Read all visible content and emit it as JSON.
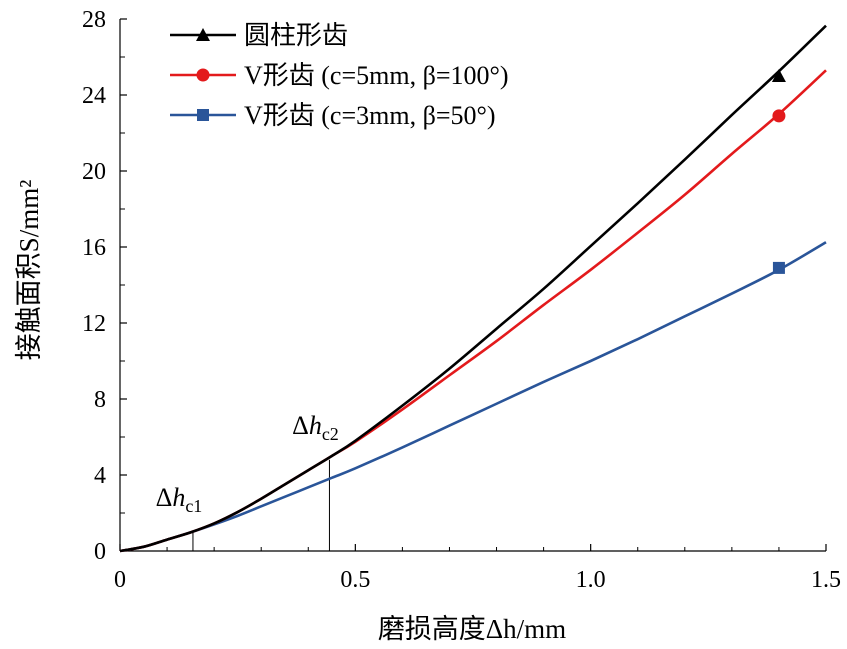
{
  "chart_data": {
    "type": "line",
    "xlabel": "磨损高度Δh/mm",
    "ylabel": "接触面积S/mm²",
    "xlim": [
      0,
      1.5
    ],
    "ylim": [
      0,
      28
    ],
    "x_ticks": [
      "0",
      "0.5",
      "1.0",
      "1.5"
    ],
    "x_tick_values": [
      0,
      0.5,
      1.0,
      1.5
    ],
    "y_ticks": [
      "0",
      "4",
      "8",
      "12",
      "16",
      "20",
      "24",
      "28"
    ],
    "y_tick_values": [
      0,
      4,
      8,
      12,
      16,
      20,
      24,
      28
    ],
    "grid": false,
    "legend_position": "top-left",
    "series": [
      {
        "name": "圆柱形齿",
        "color": "#000000",
        "marker": "triangle",
        "x": [
          0,
          0.05,
          0.1,
          0.15,
          0.2,
          0.25,
          0.3,
          0.35,
          0.4,
          0.45,
          0.5,
          0.6,
          0.7,
          0.8,
          0.9,
          1.0,
          1.1,
          1.2,
          1.3,
          1.4,
          1.5
        ],
        "y": [
          0,
          0.22,
          0.6,
          0.98,
          1.45,
          2.05,
          2.75,
          3.5,
          4.25,
          5.0,
          5.8,
          7.65,
          9.6,
          11.7,
          13.8,
          16.05,
          18.3,
          20.6,
          22.95,
          25.25,
          27.65
        ],
        "marker_x": 1.4,
        "marker_y": 25.0
      },
      {
        "name": "V形齿 (c=5mm, β=100°)",
        "color": "#e31a1c",
        "marker": "circle",
        "x": [
          0,
          0.05,
          0.1,
          0.15,
          0.2,
          0.25,
          0.3,
          0.35,
          0.4,
          0.45,
          0.5,
          0.6,
          0.7,
          0.8,
          0.9,
          1.0,
          1.1,
          1.2,
          1.3,
          1.4,
          1.5
        ],
        "y": [
          0,
          0.22,
          0.6,
          0.98,
          1.45,
          2.05,
          2.75,
          3.5,
          4.25,
          5.0,
          5.75,
          7.45,
          9.25,
          11.05,
          12.95,
          14.8,
          16.75,
          18.75,
          20.9,
          23.0,
          25.3
        ],
        "marker_x": 1.4,
        "marker_y": 22.9
      },
      {
        "name": "V形齿 (c=3mm, β=50°)",
        "color": "#2a5599",
        "marker": "square",
        "x": [
          0,
          0.05,
          0.1,
          0.15,
          0.2,
          0.25,
          0.3,
          0.35,
          0.4,
          0.45,
          0.5,
          0.6,
          0.7,
          0.8,
          0.9,
          1.0,
          1.1,
          1.2,
          1.3,
          1.4,
          1.5
        ],
        "y": [
          0,
          0.22,
          0.6,
          0.98,
          1.4,
          1.85,
          2.35,
          2.85,
          3.35,
          3.85,
          4.35,
          5.45,
          6.6,
          7.75,
          8.9,
          10.0,
          11.15,
          12.35,
          13.55,
          14.8,
          16.25
        ],
        "marker_x": 1.4,
        "marker_y": 14.9
      }
    ],
    "annotations": [
      {
        "label_main": "Δh",
        "label_sub": "c1",
        "x": 0.155,
        "y_top": 1.0
      },
      {
        "label_main": "Δh",
        "label_sub": "c2",
        "x": 0.445,
        "y_top": 4.8
      }
    ]
  }
}
